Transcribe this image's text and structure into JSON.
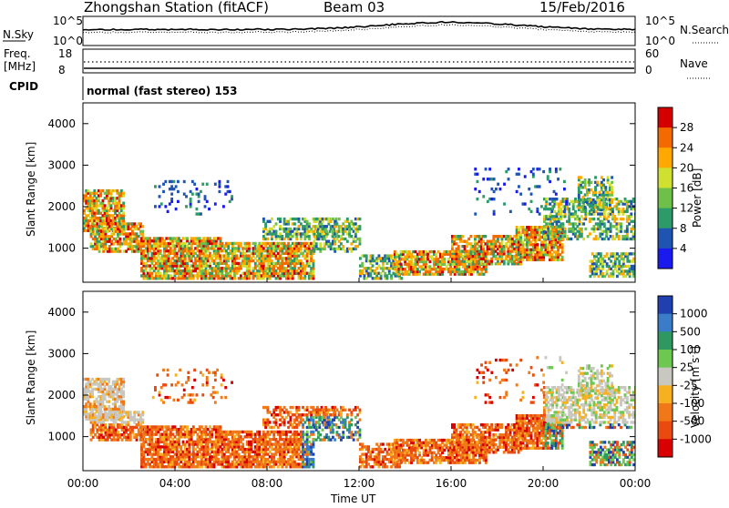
{
  "header": {
    "station": "Zhongshan Station (fitACF)",
    "beam": "Beam 03",
    "date": "15/Feb/2016"
  },
  "status_panels": {
    "noise": {
      "left_label": "N.Sky",
      "right_label": "N.Search",
      "left_ticks": [
        "10^5",
        "10^0"
      ],
      "right_ticks": [
        "10^5",
        "10^0"
      ]
    },
    "freq": {
      "left_label_1": "Freq.",
      "left_label_2": "[MHz]",
      "right_label": "Nave",
      "left_ticks": [
        "18",
        "8"
      ],
      "right_ticks": [
        "60",
        "0"
      ]
    },
    "cpid": {
      "label": "CPID",
      "text": "normal (fast stereo) 153"
    }
  },
  "chart_data": [
    {
      "type": "heatmap",
      "name": "power",
      "ylabel": "Slant Range [km]",
      "ylim": [
        180,
        4500
      ],
      "y_ticks": [
        "1000",
        "2000",
        "3000",
        "4000"
      ],
      "x_ticks": [
        "00:00",
        "04:00",
        "08:00",
        "12:00",
        "16:00",
        "20:00",
        "00:00"
      ],
      "colorbar": {
        "label": "Power [dB]",
        "ticks": [
          "28",
          "24",
          "20",
          "16",
          "12",
          "8",
          "4"
        ],
        "colors": [
          "#d40000",
          "#f26a00",
          "#ffa800",
          "#cfe030",
          "#6fc04a",
          "#2d9a6a",
          "#1f55b0",
          "#1a1aee"
        ]
      }
    },
    {
      "type": "heatmap",
      "name": "velocity",
      "ylabel": "Slant Range [km]",
      "ylim": [
        180,
        4500
      ],
      "y_ticks": [
        "1000",
        "2000",
        "3000",
        "4000"
      ],
      "x_ticks": [
        "00:00",
        "04:00",
        "08:00",
        "12:00",
        "16:00",
        "20:00",
        "00:00"
      ],
      "xlabel": "Time UT",
      "colorbar": {
        "label_main": "Velocity [m s",
        "label_sup": "-1",
        "label_end": "]",
        "ticks": [
          "1000",
          "500",
          "100",
          "25",
          "-25",
          "-100",
          "-500",
          "-1000"
        ],
        "colors": [
          "#2040b0",
          "#3a7cc8",
          "#2e9860",
          "#6cc850",
          "#c8c8c0",
          "#f6b020",
          "#f07818",
          "#e84a10",
          "#d80000"
        ]
      }
    }
  ]
}
